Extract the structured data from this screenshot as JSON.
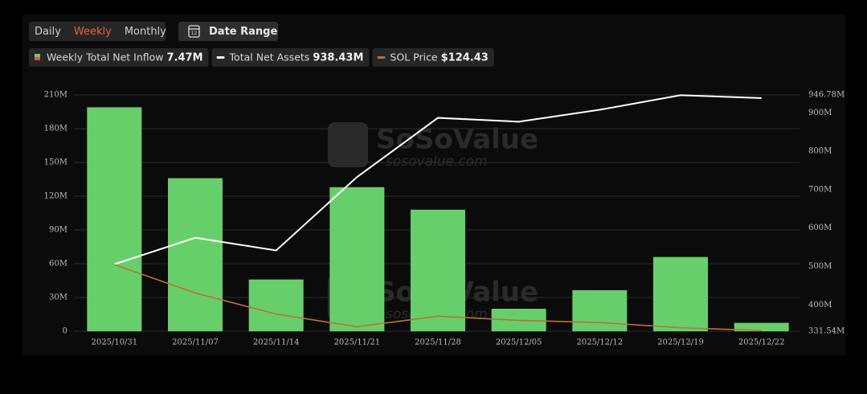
{
  "toolbar": {
    "periods": [
      "Daily",
      "Weekly",
      "Monthly"
    ],
    "active": 1,
    "date_range": "Date Range",
    "calendar_icon": "12"
  },
  "watermark": [
    "SoSoValue",
    "sosovalue.com"
  ],
  "chart_data": {
    "type": "bar",
    "categories": [
      "2025/10/31",
      "2025/11/07",
      "2025/11/14",
      "2025/11/21",
      "2025/11/28",
      "2025/12/05",
      "2025/12/12",
      "2025/12/19",
      "2025/12/22"
    ],
    "series": [
      {
        "name": "Weekly Total Net Inflow",
        "legend_value": "7.47M",
        "type": "bar",
        "color": "#67cf6a",
        "values": [
          199000000,
          136000000,
          46000000,
          128000000,
          108000000,
          20000000,
          36500000,
          66000000,
          7470000
        ]
      },
      {
        "name": "Total Net Assets",
        "legend_value": "938.43M",
        "type": "line",
        "axis": "y2",
        "color": "#ffffff",
        "values": [
          506000000,
          575000000,
          542000000,
          733000000,
          887000000,
          877000000,
          908000000,
          946000000,
          938430000
        ]
      },
      {
        "name": "SOL Price",
        "legend_value": "$124.43",
        "type": "line",
        "axis": "hidden",
        "color": "#b8733a",
        "values": [
          187,
          160,
          140,
          128,
          138,
          134,
          132,
          127,
          124.43
        ]
      }
    ],
    "ylim": [
      0,
      210000000
    ],
    "yticks": [
      0,
      {
        "value": 30000000,
        "label": "30M"
      },
      {
        "value": 60000000,
        "label": "60M"
      },
      {
        "value": 90000000,
        "label": "90M"
      },
      {
        "value": 120000000,
        "label": "120M"
      },
      {
        "value": 150000000,
        "label": "150M"
      },
      {
        "value": 180000000,
        "label": "180M"
      },
      {
        "value": 210000000,
        "label": "210M"
      }
    ],
    "y2lim": [
      331540000,
      946780000
    ],
    "y2ticks": [
      {
        "value": 331540000,
        "label": "331.54M"
      },
      {
        "value": 400000000,
        "label": "400M"
      },
      {
        "value": 500000000,
        "label": "500M"
      },
      {
        "value": 600000000,
        "label": "600M"
      },
      {
        "value": 700000000,
        "label": "700M"
      },
      {
        "value": 800000000,
        "label": "800M"
      },
      {
        "value": 900000000,
        "label": "900M"
      },
      {
        "value": 946780000,
        "label": "946.78M"
      }
    ],
    "grid": true
  }
}
